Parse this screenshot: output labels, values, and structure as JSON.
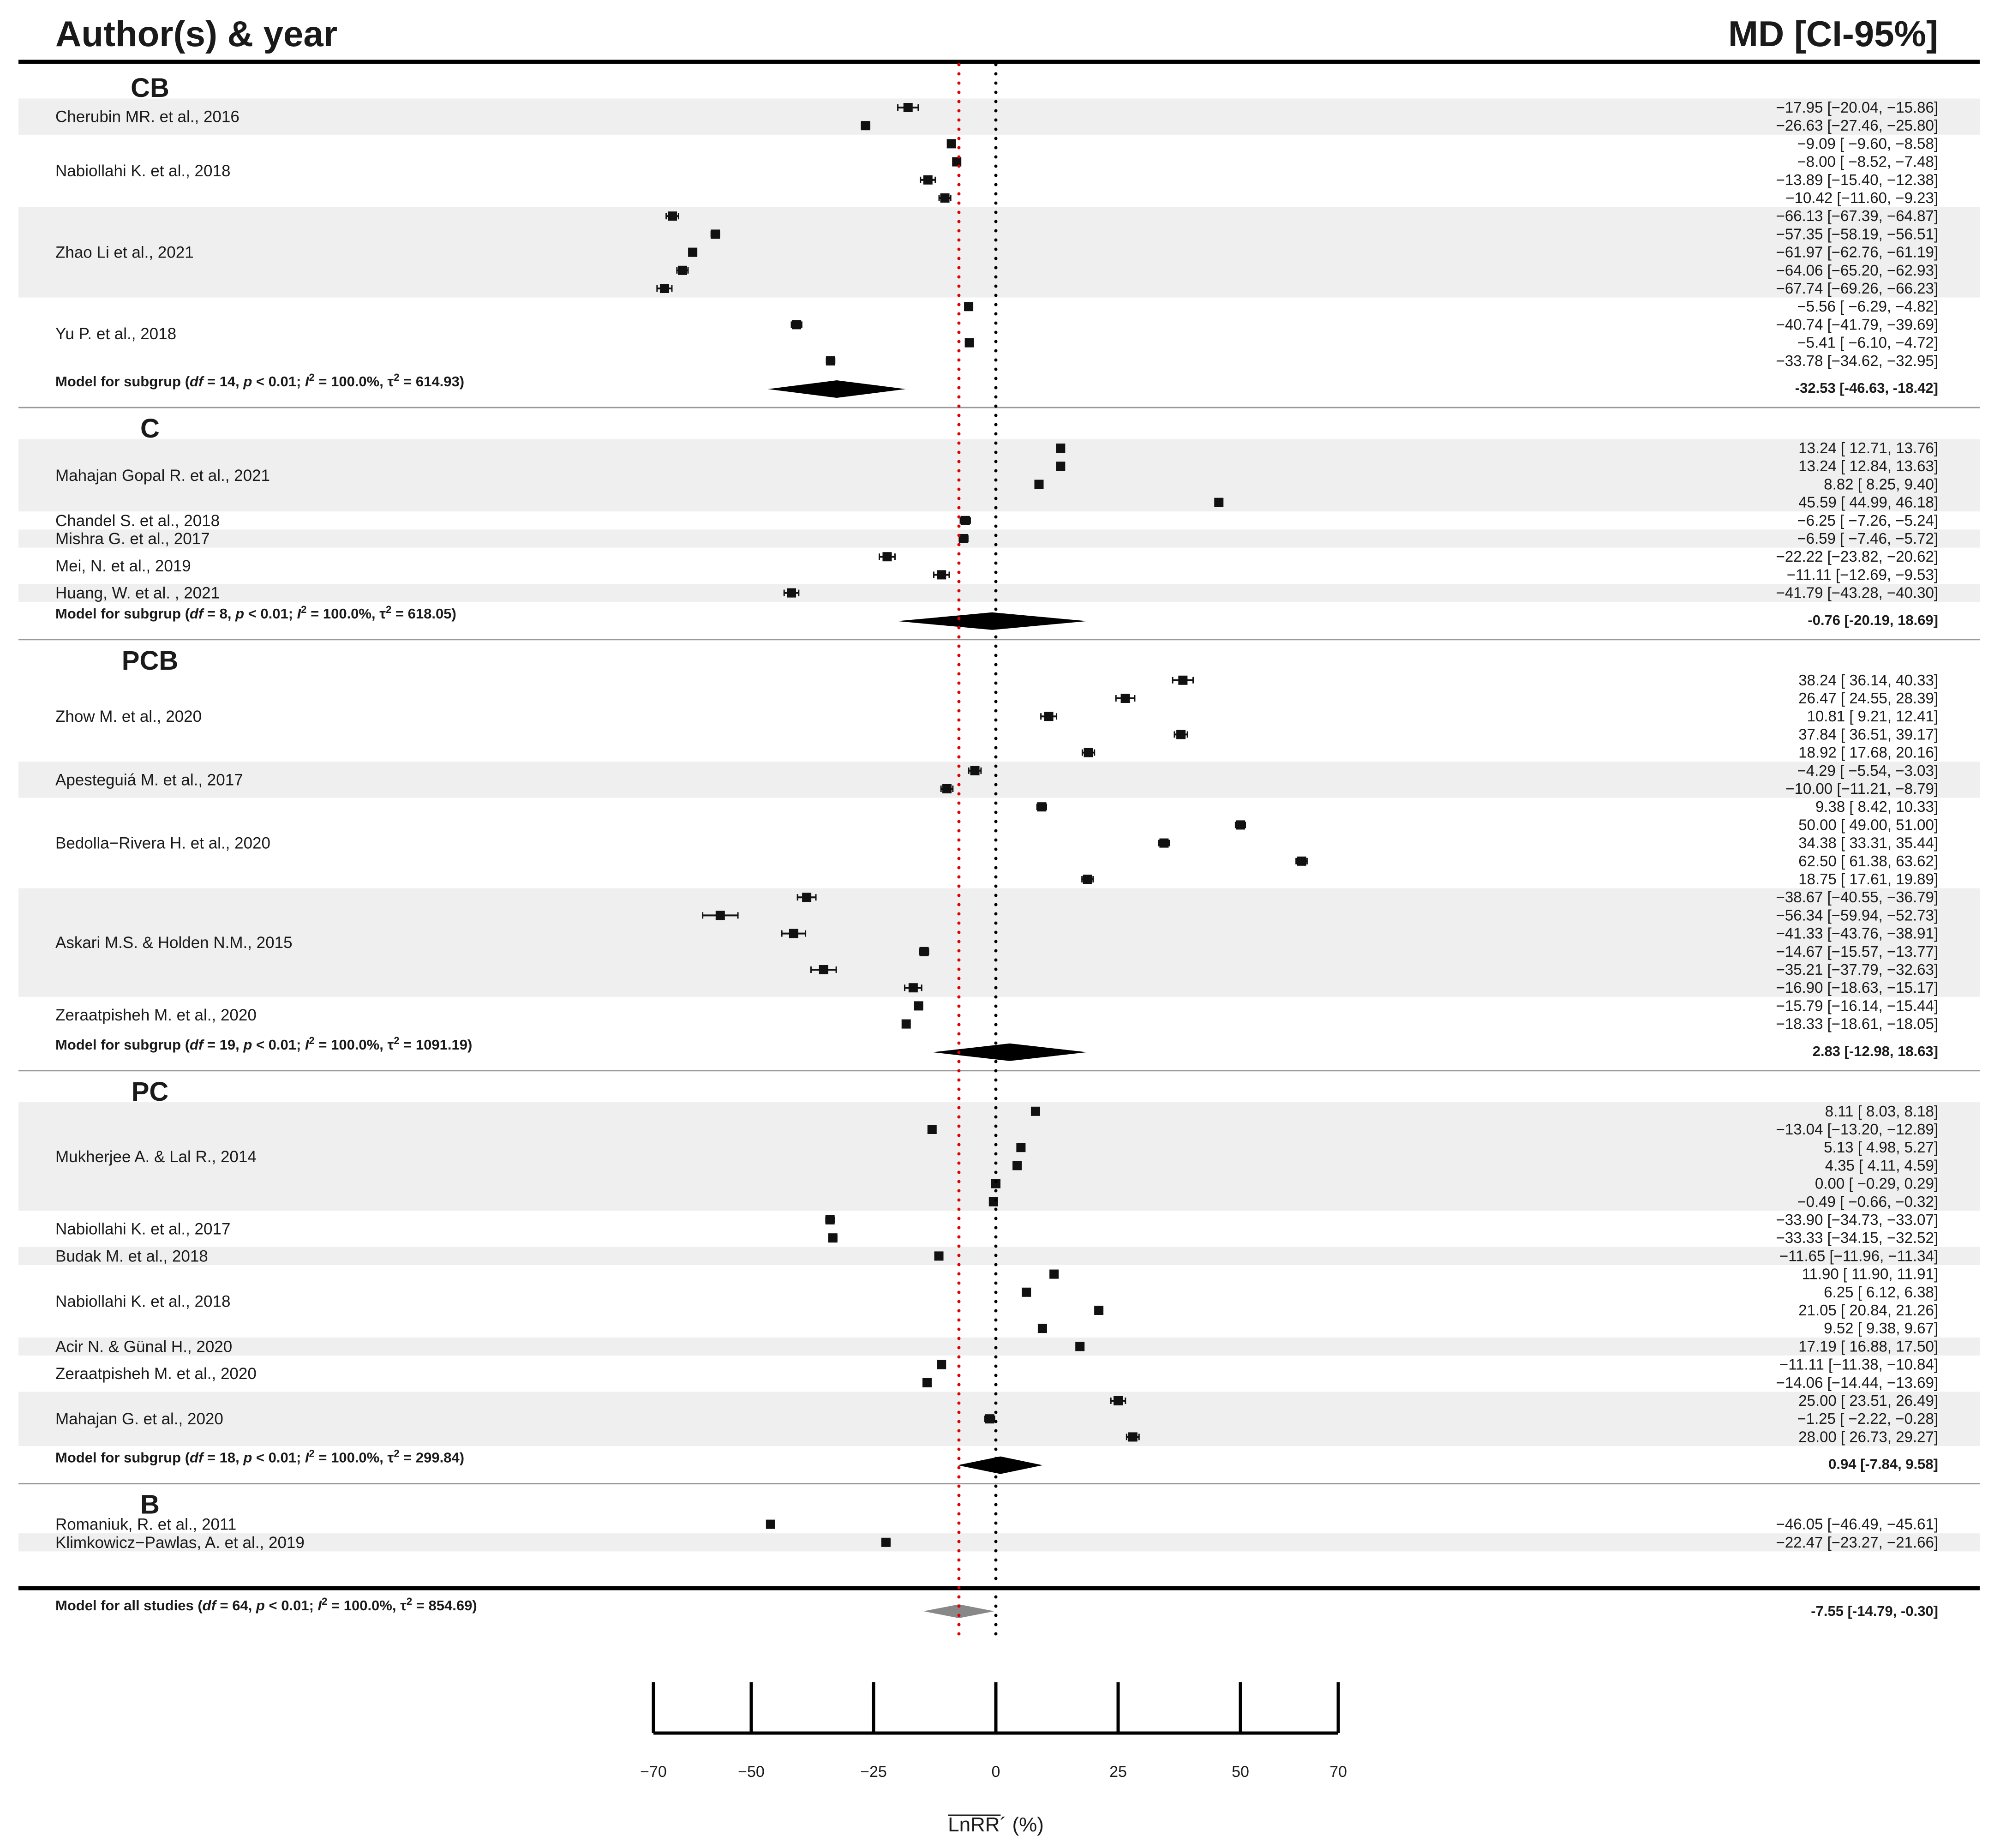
{
  "header": {
    "left": "Author(s) & year",
    "right": "MD [CI-95%]"
  },
  "chart_data": {
    "type": "forest",
    "xlabel": "LnRR´ (%)",
    "xlim": [
      -70,
      70
    ],
    "ticks": [
      -70,
      -50,
      -25,
      0,
      25,
      50,
      70
    ],
    "tick_labels": [
      "−70",
      "−50",
      "−25",
      "0",
      "25",
      "50",
      "70"
    ],
    "reference_line": 0,
    "overall_line": -7.55,
    "groups": [
      {
        "name": "CB",
        "studies": [
          {
            "label": "Cherubin MR. et al., 2016",
            "shaded": true,
            "rows": [
              {
                "est": -17.95,
                "lo": -20.04,
                "hi": -15.86,
                "text": "−17.95 [−20.04, −15.86]"
              },
              {
                "est": -26.63,
                "lo": -27.46,
                "hi": -25.8,
                "text": "−26.63 [−27.46, −25.80]"
              }
            ]
          },
          {
            "label": "Nabiollahi K. et al., 2018",
            "shaded": false,
            "rows": [
              {
                "est": -9.09,
                "lo": -9.6,
                "hi": -8.58,
                "text": "−9.09 [ −9.60, −8.58]"
              },
              {
                "est": -8.0,
                "lo": -8.52,
                "hi": -7.48,
                "text": "−8.00 [ −8.52, −7.48]"
              },
              {
                "est": -13.89,
                "lo": -15.4,
                "hi": -12.38,
                "text": "−13.89 [−15.40, −12.38]"
              },
              {
                "est": -10.42,
                "lo": -11.6,
                "hi": -9.23,
                "text": "−10.42 [−11.60, −9.23]"
              }
            ]
          },
          {
            "label": "Zhao Li et al., 2021",
            "shaded": true,
            "rows": [
              {
                "est": -66.13,
                "lo": -67.39,
                "hi": -64.87,
                "text": "−66.13 [−67.39, −64.87]"
              },
              {
                "est": -57.35,
                "lo": -58.19,
                "hi": -56.51,
                "text": "−57.35 [−58.19, −56.51]"
              },
              {
                "est": -61.97,
                "lo": -62.76,
                "hi": -61.19,
                "text": "−61.97 [−62.76, −61.19]"
              },
              {
                "est": -64.06,
                "lo": -65.2,
                "hi": -62.93,
                "text": "−64.06 [−65.20, −62.93]"
              },
              {
                "est": -67.74,
                "lo": -69.26,
                "hi": -66.23,
                "text": "−67.74 [−69.26, −66.23]"
              }
            ]
          },
          {
            "label": "Yu P. et al., 2018",
            "shaded": false,
            "rows": [
              {
                "est": -5.56,
                "lo": -6.29,
                "hi": -4.82,
                "text": "−5.56 [ −6.29, −4.82]"
              },
              {
                "est": -40.74,
                "lo": -41.79,
                "hi": -39.69,
                "text": "−40.74 [−41.79, −39.69]"
              },
              {
                "est": -5.41,
                "lo": -6.1,
                "hi": -4.72,
                "text": "−5.41 [ −6.10, −4.72]"
              },
              {
                "est": -33.78,
                "lo": -34.62,
                "hi": -32.95,
                "text": "−33.78 [−34.62, −32.95]"
              }
            ]
          }
        ],
        "model": {
          "label": "Model for subgrup (df = 14, p < 0.01; I² = 100.0%, τ² = 614.93)",
          "est": -32.53,
          "lo": -46.63,
          "hi": -18.42,
          "text": "-32.53 [-46.63, -18.42]"
        }
      },
      {
        "name": "C",
        "studies": [
          {
            "label": "Mahajan Gopal R. et al., 2021",
            "shaded": true,
            "rows": [
              {
                "est": 13.24,
                "lo": 12.71,
                "hi": 13.76,
                "text": "13.24 [ 12.71, 13.76]"
              },
              {
                "est": 13.24,
                "lo": 12.84,
                "hi": 13.63,
                "text": "13.24 [ 12.84, 13.63]"
              },
              {
                "est": 8.82,
                "lo": 8.25,
                "hi": 9.4,
                "text": "8.82 [ 8.25, 9.40]"
              },
              {
                "est": 45.59,
                "lo": 44.99,
                "hi": 46.18,
                "text": "45.59 [ 44.99, 46.18]"
              }
            ]
          },
          {
            "label": "Chandel S. et al., 2018",
            "shaded": false,
            "rows": [
              {
                "est": -6.25,
                "lo": -7.26,
                "hi": -5.24,
                "text": "−6.25 [ −7.26, −5.24]"
              }
            ]
          },
          {
            "label": "Mishra G. et al., 2017",
            "shaded": true,
            "rows": [
              {
                "est": -6.59,
                "lo": -7.46,
                "hi": -5.72,
                "text": "−6.59 [ −7.46, −5.72]"
              }
            ]
          },
          {
            "label": "Mei, N. et al., 2019",
            "shaded": false,
            "rows": [
              {
                "est": -22.22,
                "lo": -23.82,
                "hi": -20.62,
                "text": "−22.22 [−23.82, −20.62]"
              },
              {
                "est": -11.11,
                "lo": -12.69,
                "hi": -9.53,
                "text": "−11.11 [−12.69, −9.53]"
              }
            ]
          },
          {
            "label": "Huang, W. et al. , 2021",
            "shaded": true,
            "rows": [
              {
                "est": -41.79,
                "lo": -43.28,
                "hi": -40.3,
                "text": "−41.79 [−43.28, −40.30]"
              }
            ]
          }
        ],
        "model": {
          "label": "Model for subgrup (df = 8, p < 0.01; I² = 100.0%, τ² = 618.05)",
          "est": -0.76,
          "lo": -20.19,
          "hi": 18.69,
          "text": "-0.76 [-20.19, 18.69]"
        }
      },
      {
        "name": "PCB",
        "studies": [
          {
            "label": "Zhow M. et al., 2020",
            "shaded": false,
            "rows": [
              {
                "est": 38.24,
                "lo": 36.14,
                "hi": 40.33,
                "text": "38.24 [ 36.14, 40.33]"
              },
              {
                "est": 26.47,
                "lo": 24.55,
                "hi": 28.39,
                "text": "26.47 [ 24.55, 28.39]"
              },
              {
                "est": 10.81,
                "lo": 9.21,
                "hi": 12.41,
                "text": "10.81 [ 9.21, 12.41]"
              },
              {
                "est": 37.84,
                "lo": 36.51,
                "hi": 39.17,
                "text": "37.84 [ 36.51, 39.17]"
              },
              {
                "est": 18.92,
                "lo": 17.68,
                "hi": 20.16,
                "text": "18.92 [ 17.68, 20.16]"
              }
            ]
          },
          {
            "label": "Apesteguiá M. et al., 2017",
            "shaded": true,
            "rows": [
              {
                "est": -4.29,
                "lo": -5.54,
                "hi": -3.03,
                "text": "−4.29 [ −5.54, −3.03]"
              },
              {
                "est": -10.0,
                "lo": -11.21,
                "hi": -8.79,
                "text": "−10.00 [−11.21, −8.79]"
              }
            ]
          },
          {
            "label": "Bedolla−Rivera H. et al., 2020",
            "shaded": false,
            "rows": [
              {
                "est": 9.38,
                "lo": 8.42,
                "hi": 10.33,
                "text": "9.38 [ 8.42, 10.33]"
              },
              {
                "est": 50.0,
                "lo": 49.0,
                "hi": 51.0,
                "text": "50.00 [ 49.00, 51.00]"
              },
              {
                "est": 34.38,
                "lo": 33.31,
                "hi": 35.44,
                "text": "34.38 [ 33.31, 35.44]"
              },
              {
                "est": 62.5,
                "lo": 61.38,
                "hi": 63.62,
                "text": "62.50 [ 61.38, 63.62]"
              },
              {
                "est": 18.75,
                "lo": 17.61,
                "hi": 19.89,
                "text": "18.75 [ 17.61, 19.89]"
              }
            ]
          },
          {
            "label": "Askari M.S. & Holden N.M., 2015",
            "shaded": true,
            "rows": [
              {
                "est": -38.67,
                "lo": -40.55,
                "hi": -36.79,
                "text": "−38.67 [−40.55, −36.79]"
              },
              {
                "est": -56.34,
                "lo": -59.94,
                "hi": -52.73,
                "text": "−56.34 [−59.94, −52.73]"
              },
              {
                "est": -41.33,
                "lo": -43.76,
                "hi": -38.91,
                "text": "−41.33 [−43.76, −38.91]"
              },
              {
                "est": -14.67,
                "lo": -15.57,
                "hi": -13.77,
                "text": "−14.67 [−15.57, −13.77]"
              },
              {
                "est": -35.21,
                "lo": -37.79,
                "hi": -32.63,
                "text": "−35.21 [−37.79, −32.63]"
              },
              {
                "est": -16.9,
                "lo": -18.63,
                "hi": -15.17,
                "text": "−16.90 [−18.63, −15.17]"
              }
            ]
          },
          {
            "label": "Zeraatpisheh M. et al., 2020",
            "shaded": false,
            "rows": [
              {
                "est": -15.79,
                "lo": -16.14,
                "hi": -15.44,
                "text": "−15.79 [−16.14, −15.44]"
              },
              {
                "est": -18.33,
                "lo": -18.61,
                "hi": -18.05,
                "text": "−18.33 [−18.61, −18.05]"
              }
            ]
          }
        ],
        "model": {
          "label": "Model for subgrup (df = 19, p < 0.01; I² = 100.0%, τ² = 1091.19)",
          "est": 2.83,
          "lo": -12.98,
          "hi": 18.63,
          "text": "2.83 [-12.98, 18.63]"
        }
      },
      {
        "name": "PC",
        "studies": [
          {
            "label": "Mukherjee A. & Lal R., 2014",
            "shaded": true,
            "rows": [
              {
                "est": 8.11,
                "lo": 8.03,
                "hi": 8.18,
                "text": "8.11 [ 8.03, 8.18]"
              },
              {
                "est": -13.04,
                "lo": -13.2,
                "hi": -12.89,
                "text": "−13.04 [−13.20, −12.89]"
              },
              {
                "est": 5.13,
                "lo": 4.98,
                "hi": 5.27,
                "text": "5.13 [ 4.98, 5.27]"
              },
              {
                "est": 4.35,
                "lo": 4.11,
                "hi": 4.59,
                "text": "4.35 [ 4.11, 4.59]"
              },
              {
                "est": 0.0,
                "lo": -0.29,
                "hi": 0.29,
                "text": "0.00 [ −0.29, 0.29]"
              },
              {
                "est": -0.49,
                "lo": -0.66,
                "hi": -0.32,
                "text": "−0.49 [ −0.66, −0.32]"
              }
            ]
          },
          {
            "label": "Nabiollahi K. et al., 2017",
            "shaded": false,
            "rows": [
              {
                "est": -33.9,
                "lo": -34.73,
                "hi": -33.07,
                "text": "−33.90 [−34.73, −33.07]"
              },
              {
                "est": -33.33,
                "lo": -34.15,
                "hi": -32.52,
                "text": "−33.33 [−34.15, −32.52]"
              }
            ]
          },
          {
            "label": "Budak M. et al., 2018",
            "shaded": true,
            "rows": [
              {
                "est": -11.65,
                "lo": -11.96,
                "hi": -11.34,
                "text": "−11.65 [−11.96, −11.34]"
              }
            ]
          },
          {
            "label": "Nabiollahi K. et al., 2018",
            "shaded": false,
            "rows": [
              {
                "est": 11.9,
                "lo": 11.9,
                "hi": 11.91,
                "text": "11.90 [ 11.90, 11.91]"
              },
              {
                "est": 6.25,
                "lo": 6.12,
                "hi": 6.38,
                "text": "6.25 [ 6.12, 6.38]"
              },
              {
                "est": 21.05,
                "lo": 20.84,
                "hi": 21.26,
                "text": "21.05 [ 20.84, 21.26]"
              },
              {
                "est": 9.52,
                "lo": 9.38,
                "hi": 9.67,
                "text": "9.52 [ 9.38, 9.67]"
              }
            ]
          },
          {
            "label": "Acir N. & Günal H., 2020",
            "shaded": true,
            "rows": [
              {
                "est": 17.19,
                "lo": 16.88,
                "hi": 17.5,
                "text": "17.19 [ 16.88, 17.50]"
              }
            ]
          },
          {
            "label": "Zeraatpisheh M. et al., 2020",
            "shaded": false,
            "rows": [
              {
                "est": -11.11,
                "lo": -11.38,
                "hi": -10.84,
                "text": "−11.11 [−11.38, −10.84]"
              },
              {
                "est": -14.06,
                "lo": -14.44,
                "hi": -13.69,
                "text": "−14.06 [−14.44, −13.69]"
              }
            ]
          },
          {
            "label": "Mahajan G. et al., 2020",
            "shaded": true,
            "rows": [
              {
                "est": 25.0,
                "lo": 23.51,
                "hi": 26.49,
                "text": "25.00 [ 23.51, 26.49]"
              },
              {
                "est": -1.25,
                "lo": -2.22,
                "hi": -0.28,
                "text": "−1.25 [ −2.22, −0.28]"
              },
              {
                "est": 28.0,
                "lo": 26.73,
                "hi": 29.27,
                "text": "28.00 [ 26.73, 29.27]"
              }
            ]
          }
        ],
        "model": {
          "label": "Model for subgrup (df = 18, p < 0.01; I² = 100.0%, τ² = 299.84)",
          "est": 0.94,
          "lo": -7.84,
          "hi": 9.58,
          "text": "0.94 [-7.84, 9.58]"
        }
      },
      {
        "name": "B",
        "studies": [
          {
            "label": "Romaniuk, R. et al., 2011",
            "shaded": false,
            "rows": [
              {
                "est": -46.05,
                "lo": -46.49,
                "hi": -45.61,
                "text": "−46.05 [−46.49, −45.61]"
              }
            ]
          },
          {
            "label": "Klimkowicz−Pawlas, A. et al., 2019",
            "shaded": true,
            "rows": [
              {
                "est": -22.47,
                "lo": -23.27,
                "hi": -21.66,
                "text": "−22.47 [−23.27, −21.66]"
              }
            ]
          }
        ],
        "model": null
      }
    ],
    "overall": {
      "label": "Model for all studies (df = 64, p < 0.01; I² = 100.0%, τ² = 854.69)",
      "est": -7.55,
      "lo": -14.79,
      "hi": -0.3,
      "text": "-7.55 [-14.79, -0.30]"
    }
  }
}
